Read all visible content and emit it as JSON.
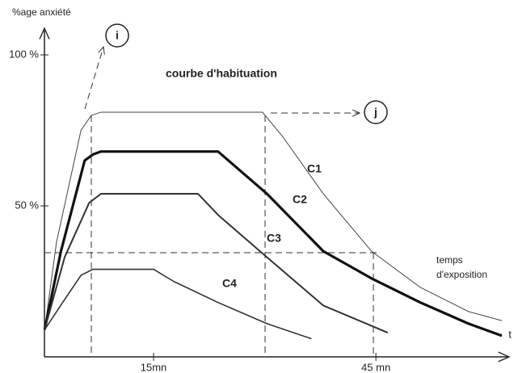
{
  "chart_data": {
    "type": "line",
    "title": "courbe d'habituation",
    "y_label": "%age anxiété",
    "x_label": [
      "temps",
      "d'exposition"
    ],
    "annotations": [
      "i",
      "j",
      "t"
    ],
    "xlim": [
      0,
      62
    ],
    "ylim": [
      0,
      100
    ],
    "xticks": [
      {
        "value": 15,
        "label": "15mn"
      },
      {
        "value": 45,
        "label": "45 mn"
      }
    ],
    "yticks": [
      {
        "value": 50,
        "label": "50 %"
      },
      {
        "value": 100,
        "label": "100 %"
      }
    ],
    "series": [
      {
        "name": "C1",
        "color": "#444444",
        "x": [
          0.3,
          1.9,
          5.2,
          6.6,
          7.9,
          29.7,
          32.4,
          37.9,
          44.4,
          51,
          57.5,
          62
        ],
        "values": [
          9,
          38,
          75,
          80,
          81,
          81,
          73,
          54,
          35,
          23,
          15,
          12
        ]
      },
      {
        "name": "C2",
        "color": "#111111",
        "x": [
          0.3,
          2.5,
          5.7,
          6.8,
          7.9,
          23.7,
          30.3,
          37.9,
          44.4,
          51,
          57.5,
          62
        ],
        "values": [
          9,
          35,
          65,
          67,
          68,
          68,
          54,
          35,
          26,
          18,
          11,
          7
        ]
      },
      {
        "name": "C3",
        "color": "#333333",
        "x": [
          0.3,
          3,
          6.3,
          7.9,
          21,
          23.7,
          30.3,
          37.9,
          46.6
        ],
        "values": [
          9,
          33,
          51,
          54,
          54,
          47,
          33,
          17,
          8
        ]
      },
      {
        "name": "C4",
        "color": "#333333",
        "x": [
          0.3,
          3,
          5.2,
          6.8,
          15,
          17.7,
          23.7,
          30.3,
          36.3
        ],
        "values": [
          9,
          19,
          27,
          29,
          29,
          25,
          18,
          11,
          6
        ]
      }
    ]
  }
}
